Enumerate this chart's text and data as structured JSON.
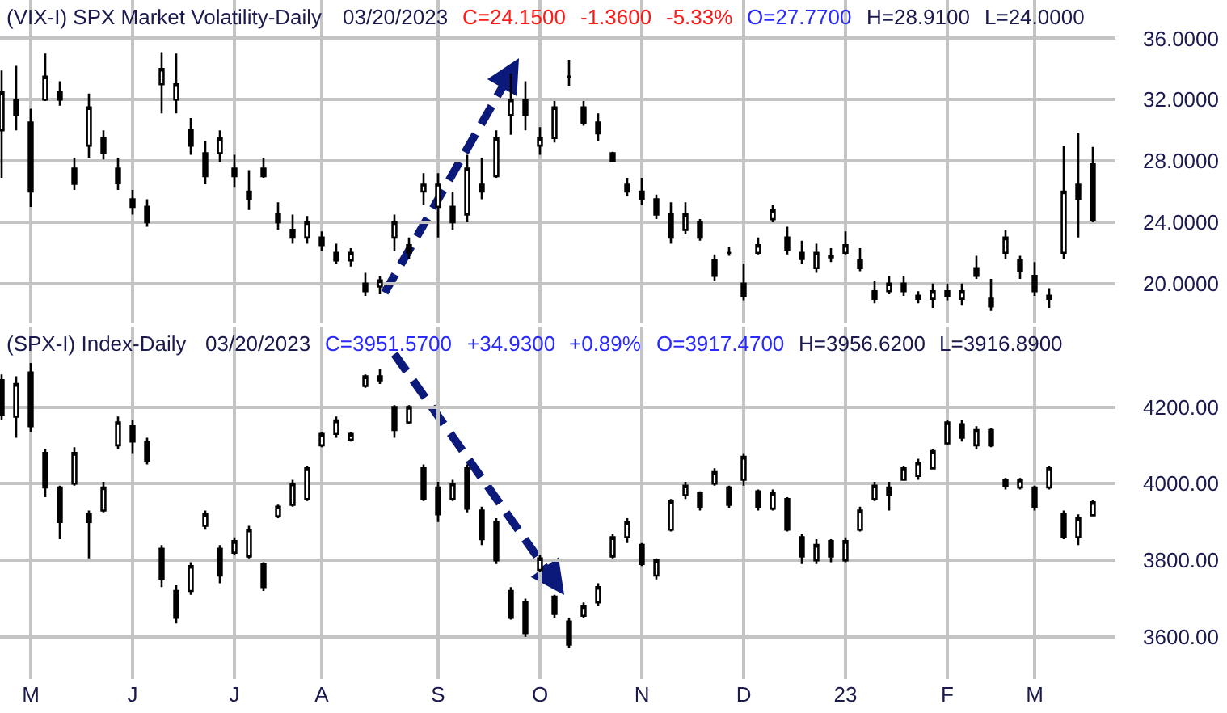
{
  "chart_data": [
    {
      "type": "candlestick",
      "title": "(VIX-I) SPX Market Volatility-Daily",
      "subtitle": "03/20/2023",
      "annotations": [
        "C=24.1500",
        "-1.3600",
        "-5.33%",
        "O=27.7700",
        "H=28.9100",
        "L=24.0000"
      ],
      "categories": [
        null,
        null,
        null,
        null,
        null,
        null,
        null,
        null,
        null,
        null,
        null,
        null,
        null,
        null,
        null,
        null,
        null,
        null,
        null,
        null,
        null,
        null,
        null,
        null,
        null,
        null,
        null,
        null,
        null,
        null,
        null,
        null,
        null,
        null,
        null,
        null,
        null,
        null,
        null,
        null,
        null,
        null,
        null,
        null,
        null,
        null,
        null,
        null,
        null,
        null,
        null,
        null,
        null,
        null,
        null,
        null,
        null,
        null,
        null,
        null,
        null,
        null,
        null,
        null,
        null,
        null,
        null,
        null,
        null,
        null,
        null,
        null,
        null,
        null,
        null,
        null
      ],
      "ohlc": [
        [
          30.0,
          33.9,
          26.9,
          32.5
        ],
        [
          32.0,
          34.2,
          30.0,
          31.0
        ],
        [
          30.5,
          31.4,
          25.0,
          26.0
        ],
        [
          32.0,
          35.0,
          31.9,
          33.5
        ],
        [
          32.5,
          33.2,
          31.6,
          32.0
        ],
        [
          27.5,
          28.2,
          26.1,
          26.5
        ],
        [
          29.0,
          32.4,
          28.2,
          31.5
        ],
        [
          29.5,
          30.0,
          28.1,
          28.5
        ],
        [
          27.5,
          28.2,
          26.1,
          26.6
        ],
        [
          25.5,
          26.1,
          24.5,
          25.0
        ],
        [
          25.0,
          25.5,
          23.7,
          24.0
        ],
        [
          33.0,
          35.1,
          31.1,
          34.0
        ],
        [
          32.0,
          35.0,
          31.1,
          33.0
        ],
        [
          30.0,
          30.8,
          28.4,
          29.0
        ],
        [
          28.5,
          29.3,
          26.5,
          27.0
        ],
        [
          28.5,
          30.0,
          27.9,
          29.5
        ],
        [
          27.5,
          28.4,
          26.3,
          27.0
        ],
        [
          26.0,
          27.4,
          24.8,
          25.5
        ],
        [
          27.5,
          28.2,
          26.9,
          27.0
        ],
        [
          24.5,
          25.3,
          23.5,
          24.0
        ],
        [
          23.5,
          24.5,
          22.6,
          23.0
        ],
        [
          23.0,
          24.4,
          22.6,
          24.0
        ],
        [
          23.0,
          23.4,
          22.1,
          22.5
        ],
        [
          22.0,
          22.6,
          21.3,
          21.5
        ],
        [
          21.5,
          22.3,
          21.1,
          22.0
        ],
        [
          20.0,
          20.7,
          19.2,
          19.5
        ],
        [
          19.8,
          20.5,
          19.3,
          20.2
        ],
        [
          23.0,
          24.5,
          22.1,
          24.0
        ],
        [
          22.5,
          23.0,
          21.6,
          22.0
        ],
        [
          26.0,
          27.2,
          25.1,
          26.5
        ],
        [
          25.0,
          27.2,
          23.0,
          26.5
        ],
        [
          25.0,
          26.0,
          23.5,
          24.0
        ],
        [
          24.5,
          28.4,
          24.0,
          27.5
        ],
        [
          26.5,
          28.2,
          25.5,
          26.0
        ],
        [
          27.0,
          30.0,
          26.9,
          29.5
        ],
        [
          31.0,
          33.7,
          29.7,
          32.0
        ],
        [
          32.0,
          33.2,
          30.0,
          31.0
        ],
        [
          29.0,
          30.2,
          28.4,
          29.5
        ],
        [
          29.5,
          31.9,
          29.2,
          31.5
        ],
        [
          33.5,
          34.6,
          32.9,
          33.5
        ],
        [
          31.5,
          31.9,
          30.3,
          30.5
        ],
        [
          30.5,
          31.1,
          29.3,
          29.8
        ],
        [
          28.5,
          28.6,
          27.9,
          28.0
        ],
        [
          26.5,
          26.9,
          25.7,
          26.0
        ],
        [
          26.0,
          26.9,
          25.1,
          25.5
        ],
        [
          25.5,
          25.8,
          24.2,
          24.5
        ],
        [
          24.5,
          25.3,
          22.6,
          23.0
        ],
        [
          23.5,
          25.3,
          23.2,
          24.5
        ],
        [
          24.0,
          24.2,
          22.8,
          23.0
        ],
        [
          21.5,
          21.9,
          20.2,
          20.5
        ],
        [
          22.0,
          22.4,
          21.8,
          22.0
        ],
        [
          20.0,
          21.3,
          18.9,
          19.2
        ],
        [
          22.0,
          23.0,
          21.9,
          22.5
        ],
        [
          24.2,
          25.1,
          24.0,
          24.8
        ],
        [
          23.0,
          23.7,
          21.9,
          22.2
        ],
        [
          22.0,
          22.8,
          21.3,
          21.6
        ],
        [
          21.0,
          22.6,
          20.7,
          22.0
        ],
        [
          21.8,
          22.3,
          21.4,
          21.7
        ],
        [
          22.0,
          23.4,
          21.9,
          22.5
        ],
        [
          21.5,
          22.3,
          20.8,
          21.0
        ],
        [
          19.5,
          20.2,
          18.7,
          19.0
        ],
        [
          19.5,
          20.5,
          19.3,
          20.0
        ],
        [
          20.0,
          20.5,
          19.2,
          19.5
        ],
        [
          19.2,
          19.5,
          18.7,
          19.0
        ],
        [
          19.0,
          20.0,
          18.4,
          19.5
        ],
        [
          19.5,
          20.0,
          18.9,
          19.2
        ],
        [
          19.0,
          20.0,
          18.6,
          19.5
        ],
        [
          21.0,
          21.8,
          20.3,
          20.5
        ],
        [
          19.0,
          20.3,
          18.2,
          18.5
        ],
        [
          22.0,
          23.5,
          21.6,
          23.0
        ],
        [
          21.5,
          21.8,
          20.3,
          20.8
        ],
        [
          20.5,
          21.4,
          19.2,
          19.5
        ],
        [
          19.0,
          19.7,
          18.4,
          19.2
        ],
        [
          22.0,
          29.0,
          21.6,
          26.0
        ],
        [
          26.5,
          29.8,
          23.0,
          25.5
        ],
        [
          27.77,
          28.91,
          24.0,
          24.15
        ]
      ],
      "color": "#000000",
      "ylim": [
        17.4,
        38.5
      ],
      "yticks": [
        {
          "value": 20,
          "label": "20.0000"
        },
        {
          "value": 24,
          "label": "24.0000"
        },
        {
          "value": 28,
          "label": "28.0000"
        },
        {
          "value": 32,
          "label": "32.0000"
        },
        {
          "value": 36,
          "label": "36.0000"
        }
      ],
      "grid": true
    },
    {
      "type": "candlestick",
      "title": "(SPX-I) Index-Daily",
      "subtitle": "03/20/2023",
      "annotations": [
        "C=3951.5700",
        "+34.9300",
        "+0.89%",
        "O=3917.4700",
        "H=3956.6200",
        "L=3916.8900"
      ],
      "categories": [
        null,
        null,
        "M",
        null,
        null,
        null,
        null,
        null,
        null,
        "J",
        null,
        null,
        null,
        null,
        null,
        null,
        "J",
        null,
        null,
        null,
        null,
        null,
        "A",
        null,
        null,
        null,
        null,
        null,
        null,
        null,
        "S",
        null,
        null,
        null,
        null,
        null,
        null,
        "O",
        null,
        null,
        null,
        null,
        null,
        null,
        "N",
        null,
        null,
        null,
        null,
        null,
        null,
        "D",
        null,
        null,
        null,
        null,
        null,
        null,
        "23",
        null,
        null,
        null,
        null,
        null,
        null,
        "F",
        null,
        null,
        null,
        null,
        null,
        "M",
        null,
        null,
        null,
        null
      ],
      "ohlc": [
        [
          4270,
          4285,
          4165,
          4180
        ],
        [
          4175,
          4280,
          4120,
          4260
        ],
        [
          4290,
          4315,
          4135,
          4150
        ],
        [
          4080,
          4090,
          3965,
          3990
        ],
        [
          3990,
          3995,
          3855,
          3900
        ],
        [
          4000,
          4095,
          3995,
          4080
        ],
        [
          3920,
          3930,
          3805,
          3900
        ],
        [
          3930,
          4005,
          3925,
          3990
        ],
        [
          4100,
          4175,
          4090,
          4160
        ],
        [
          4150,
          4165,
          4080,
          4110
        ],
        [
          4110,
          4120,
          4050,
          4060
        ],
        [
          3830,
          3840,
          3730,
          3750
        ],
        [
          3720,
          3735,
          3635,
          3650
        ],
        [
          3720,
          3795,
          3710,
          3785
        ],
        [
          3890,
          3930,
          3880,
          3920
        ],
        [
          3830,
          3840,
          3740,
          3760
        ],
        [
          3820,
          3860,
          3815,
          3850
        ],
        [
          3810,
          3890,
          3805,
          3880
        ],
        [
          3790,
          3795,
          3720,
          3730
        ],
        [
          3915,
          3945,
          3910,
          3940
        ],
        [
          3945,
          4010,
          3940,
          4000
        ],
        [
          3960,
          4045,
          3955,
          4040
        ],
        [
          4100,
          4135,
          4095,
          4130
        ],
        [
          4130,
          4175,
          4120,
          4165
        ],
        [
          4115,
          4135,
          4110,
          4130
        ],
        [
          4255,
          4285,
          4250,
          4280
        ],
        [
          4280,
          4300,
          4260,
          4270
        ],
        [
          4200,
          4205,
          4120,
          4140
        ],
        [
          4160,
          4205,
          4155,
          4200
        ],
        [
          4040,
          4050,
          3955,
          3960
        ],
        [
          3990,
          4005,
          3900,
          3920
        ],
        [
          3960,
          4010,
          3955,
          4000
        ],
        [
          4040,
          4050,
          3925,
          3935
        ],
        [
          3930,
          3940,
          3840,
          3855
        ],
        [
          3900,
          3910,
          3790,
          3800
        ],
        [
          3720,
          3730,
          3645,
          3650
        ],
        [
          3690,
          3700,
          3600,
          3610
        ],
        [
          3775,
          3815,
          3770,
          3805
        ],
        [
          3705,
          3710,
          3650,
          3660
        ],
        [
          3640,
          3650,
          3570,
          3580
        ],
        [
          3655,
          3690,
          3650,
          3680
        ],
        [
          3690,
          3740,
          3680,
          3730
        ],
        [
          3810,
          3870,
          3805,
          3860
        ],
        [
          3860,
          3910,
          3845,
          3900
        ],
        [
          3840,
          3845,
          3785,
          3790
        ],
        [
          3760,
          3805,
          3750,
          3800
        ],
        [
          3880,
          3960,
          3875,
          3955
        ],
        [
          3970,
          4005,
          3960,
          3995
        ],
        [
          3975,
          3980,
          3930,
          3940
        ],
        [
          4000,
          4040,
          3995,
          4030
        ],
        [
          3990,
          3995,
          3935,
          3945
        ],
        [
          4010,
          4080,
          3995,
          4070
        ],
        [
          3980,
          3985,
          3930,
          3940
        ],
        [
          3935,
          3985,
          3930,
          3975
        ],
        [
          3960,
          3965,
          3875,
          3880
        ],
        [
          3860,
          3870,
          3790,
          3810
        ],
        [
          3800,
          3855,
          3790,
          3840
        ],
        [
          3850,
          3855,
          3795,
          3810
        ],
        [
          3800,
          3860,
          3795,
          3850
        ],
        [
          3880,
          3940,
          3875,
          3930
        ],
        [
          3960,
          4005,
          3955,
          3995
        ],
        [
          3990,
          4005,
          3930,
          3970
        ],
        [
          4010,
          4045,
          4010,
          4040
        ],
        [
          4020,
          4065,
          4010,
          4055
        ],
        [
          4040,
          4090,
          4040,
          4085
        ],
        [
          4105,
          4165,
          4100,
          4160
        ],
        [
          4155,
          4165,
          4110,
          4120
        ],
        [
          4100,
          4150,
          4090,
          4140
        ],
        [
          4140,
          4145,
          4095,
          4100
        ],
        [
          4010,
          4015,
          3985,
          3995
        ],
        [
          3990,
          4015,
          3985,
          4010
        ],
        [
          3990,
          3995,
          3930,
          3940
        ],
        [
          3990,
          4045,
          3985,
          4040
        ],
        [
          3920,
          3930,
          3855,
          3860
        ],
        [
          3860,
          3920,
          3840,
          3910
        ],
        [
          3917.47,
          3956.62,
          3916.89,
          3951.57
        ]
      ],
      "color": "#000000",
      "ylim": [
        3490,
        4410
      ],
      "yticks": [
        {
          "value": 3600,
          "label": "3600.00"
        },
        {
          "value": 3800,
          "label": "3800.00"
        },
        {
          "value": 4000,
          "label": "4000.00"
        },
        {
          "value": 4200,
          "label": "4200.00"
        }
      ],
      "grid": true
    }
  ]
}
